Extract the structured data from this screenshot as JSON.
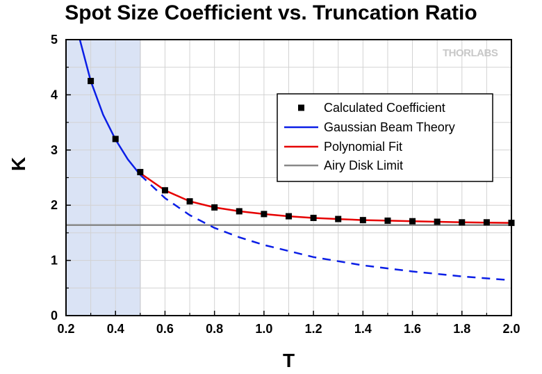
{
  "chart_data": {
    "type": "line",
    "title": "Spot Size Coefficient vs. Truncation Ratio",
    "xlabel": "T",
    "ylabel": "K",
    "xlim": [
      0.2,
      2.0
    ],
    "ylim": [
      0,
      5
    ],
    "x_ticks": [
      "0.2",
      "0.4",
      "0.6",
      "0.8",
      "1.0",
      "1.2",
      "1.4",
      "1.6",
      "1.8",
      "2.0"
    ],
    "y_ticks": [
      "0",
      "1",
      "2",
      "3",
      "4",
      "5"
    ],
    "grid": true,
    "shaded_region": {
      "x_range": [
        0.2,
        0.5
      ],
      "color": "#dae3f5"
    },
    "legend_position": "upper-right",
    "watermark": "THORLABS",
    "series": [
      {
        "name": "Calculated Coefficient",
        "style": "markers",
        "marker": "square",
        "color": "#000000",
        "x": [
          0.3,
          0.4,
          0.5,
          0.6,
          0.7,
          0.8,
          0.9,
          1.0,
          1.1,
          1.2,
          1.3,
          1.4,
          1.5,
          1.6,
          1.7,
          1.8,
          1.9,
          2.0
        ],
        "y": [
          4.25,
          3.2,
          2.6,
          2.27,
          2.07,
          1.96,
          1.89,
          1.84,
          1.8,
          1.77,
          1.75,
          1.73,
          1.72,
          1.71,
          1.7,
          1.69,
          1.69,
          1.68
        ]
      },
      {
        "name": "Gaussian Beam Theory",
        "style": "line",
        "dashed_after_x": 0.5,
        "color": "#0a1ee6",
        "x": [
          0.25,
          0.3,
          0.35,
          0.4,
          0.45,
          0.5,
          0.6,
          0.7,
          0.8,
          0.9,
          1.0,
          1.2,
          1.4,
          1.6,
          1.8,
          2.0
        ],
        "y": [
          5.1,
          4.25,
          3.64,
          3.19,
          2.83,
          2.55,
          2.13,
          1.82,
          1.59,
          1.42,
          1.28,
          1.06,
          0.91,
          0.8,
          0.71,
          0.64
        ]
      },
      {
        "name": "Polynomial Fit",
        "style": "line",
        "color": "#e60000",
        "x": [
          0.5,
          0.6,
          0.7,
          0.8,
          0.9,
          1.0,
          1.1,
          1.2,
          1.3,
          1.4,
          1.5,
          1.6,
          1.7,
          1.8,
          1.9,
          2.0
        ],
        "y": [
          2.58,
          2.27,
          2.07,
          1.96,
          1.89,
          1.84,
          1.8,
          1.77,
          1.75,
          1.73,
          1.72,
          1.71,
          1.7,
          1.69,
          1.685,
          1.68
        ]
      },
      {
        "name": "Airy Disk Limit",
        "style": "line",
        "color": "#888888",
        "x": [
          0.2,
          2.0
        ],
        "y": [
          1.64,
          1.64
        ]
      }
    ]
  }
}
